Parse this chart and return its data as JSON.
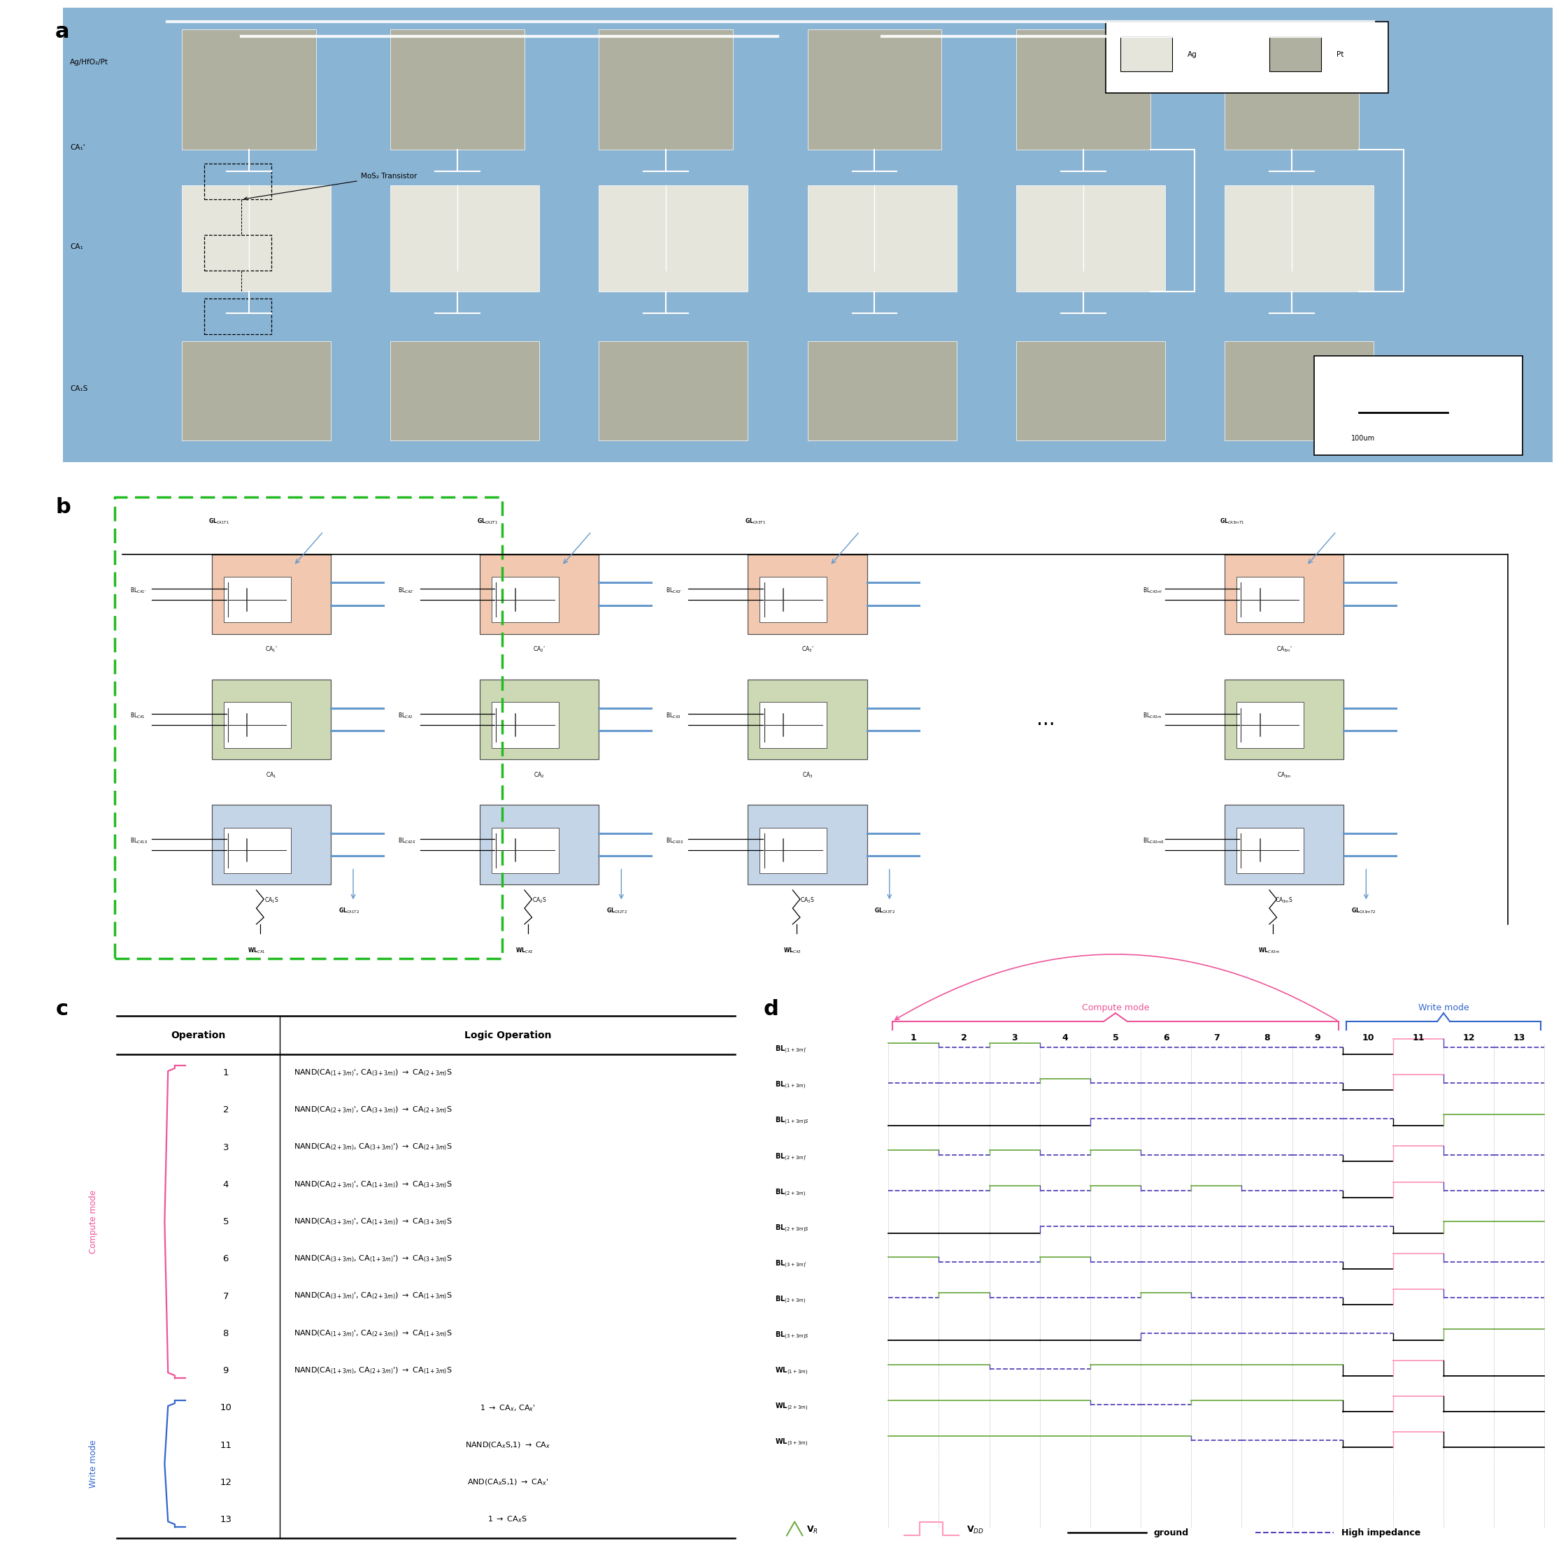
{
  "fig_width": 22.42,
  "fig_height": 22.27,
  "bg_color": "#ffffff",
  "panel_a_bg": "#8ab4d4",
  "pt_color": "#b0b0a0",
  "ag_color": "#e5e5dc",
  "panel_b": {
    "pink_fill": "#f2c9b0",
    "green_fill": "#cdd9b5",
    "blue_fill": "#c5d5e8",
    "green_dashed": "#22bb22",
    "cap_blue": "#6699cc",
    "gl_blue": "#6699cc"
  },
  "panel_c": {
    "pink_color": "#ee5599",
    "blue_color": "#3366cc",
    "compute_ops": [
      [
        "1",
        "NAND(CA$_{(1+3m)}$', CA$_{(3+3m)}$) $\\rightarrow$ CA$_{(2+3m)}$S"
      ],
      [
        "2",
        "NAND(CA$_{(2+3m)}$', CA$_{(3+3m)}$) $\\rightarrow$ CA$_{(2+3m)}$S"
      ],
      [
        "3",
        "NAND(CA$_{(2+3m)}$, CA$_{(3+3m)}$') $\\rightarrow$ CA$_{(2+3m)}$S"
      ],
      [
        "4",
        "NAND(CA$_{(2+3m)}$', CA$_{(1+3m)}$) $\\rightarrow$ CA$_{(3+3m)}$S"
      ],
      [
        "5",
        "NAND(CA$_{(3+3m)}$', CA$_{(1+3m)}$) $\\rightarrow$ CA$_{(3+3m)}$S"
      ],
      [
        "6",
        "NAND(CA$_{(3+3m)}$, CA$_{(1+3m)}$') $\\rightarrow$ CA$_{(3+3m)}$S"
      ],
      [
        "7",
        "NAND(CA$_{(3+3m)}$', CA$_{(2+3m)}$) $\\rightarrow$ CA$_{(1+3m)}$S"
      ],
      [
        "8",
        "NAND(CA$_{(1+3m)}$', CA$_{(2+3m)}$) $\\rightarrow$ CA$_{(1+3m)}$S"
      ],
      [
        "9",
        "NAND(CA$_{(1+3m)}$, CA$_{(2+3m)}$') $\\rightarrow$ CA$_{(1+3m)}$S"
      ]
    ],
    "write_ops": [
      [
        "10",
        "1 $\\rightarrow$ CA$_x$, CA$_x$'"
      ],
      [
        "11",
        "NAND(CA$_x$S,1) $\\rightarrow$ CA$_x$"
      ],
      [
        "12",
        "AND(CA$_x$S,1) $\\rightarrow$ CA$_x$'"
      ],
      [
        "13",
        "1 $\\rightarrow$ CA$_x$S"
      ]
    ]
  },
  "panel_d": {
    "pink_color": "#ee5599",
    "blue_color": "#3366cc",
    "green_color": "#70ad47",
    "purple_color": "#5544bb",
    "pink_vdd": "#ff99bb",
    "signal_labels": [
      "BL$_{(1+3m)'}$",
      "BL$_{(1+3m)}$",
      "BL$_{(1+3m)S}$",
      "BL$_{(2+3m)'}$",
      "BL$_{(2+3m)}$",
      "BL$_{(2+3m)S}$",
      "BL$_{(3+3m)'}$",
      "BL$_{(2+3m)}$",
      "BL$_{(3+3m)S}$",
      "WL$_{(1+3m)}$",
      "WL$_{(2+3m)}$",
      "WL$_{(3+3m)}$"
    ]
  }
}
